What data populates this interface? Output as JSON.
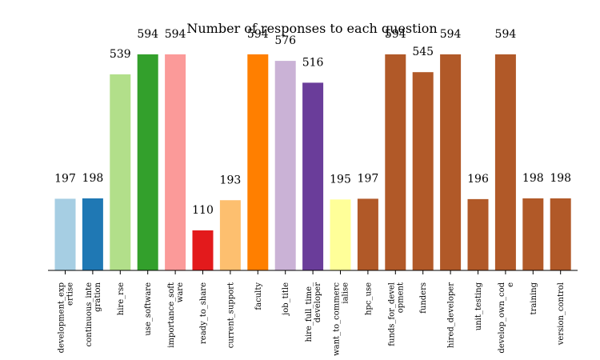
{
  "chart_data": {
    "type": "bar",
    "title": "Number of responses to each question",
    "xlabel": "",
    "ylabel": "",
    "ylim": [
      0,
      640
    ],
    "grid": false,
    "y_axis_visible": false,
    "categories": [
      "development_exp\nertise",
      "continuous_inte\ngration",
      "hire_rse",
      "use_software",
      "importance_soft\nware",
      "ready_to_share",
      "current_support",
      "faculty",
      "job_title",
      "hire_full_time_\ndeveloper",
      "want_to_commerc\nialise",
      "hpc_use",
      "funds_for_devel\nopment",
      "funders",
      "hired_developer",
      "unit_testing",
      "develop_own_cod\ne",
      "training",
      "version_control"
    ],
    "values": [
      197,
      198,
      539,
      594,
      594,
      110,
      193,
      594,
      576,
      516,
      195,
      197,
      594,
      545,
      594,
      196,
      594,
      198,
      198
    ],
    "value_labels": [
      "197",
      "198",
      "539",
      "594",
      "594",
      "110",
      "193",
      "594",
      "576",
      "516",
      "195",
      "197",
      "594",
      "545",
      "594",
      "196",
      "594",
      "198",
      "198"
    ],
    "colors": [
      "#a6cee3",
      "#1f78b4",
      "#b2df8a",
      "#33a02c",
      "#fb9a99",
      "#e31a1c",
      "#fdbf6f",
      "#ff7f00",
      "#cab2d6",
      "#6a3d9a",
      "#ffff99",
      "#b15928",
      "#b15928",
      "#b15928",
      "#b15928",
      "#b15928",
      "#b15928",
      "#b15928",
      "#b15928"
    ]
  }
}
